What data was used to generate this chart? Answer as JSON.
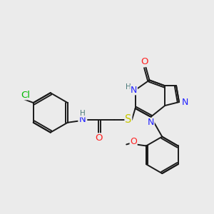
{
  "bg_color": "#ebebeb",
  "bond_color": "#1a1a1a",
  "bond_width": 1.4,
  "atom_colors": {
    "N": "#2020ff",
    "O": "#ff2020",
    "S": "#c8c800",
    "Cl": "#00b800",
    "H": "#4a7a7a"
  },
  "font_size": 8.5,
  "figsize": [
    3.0,
    3.0
  ],
  "dpi": 100
}
